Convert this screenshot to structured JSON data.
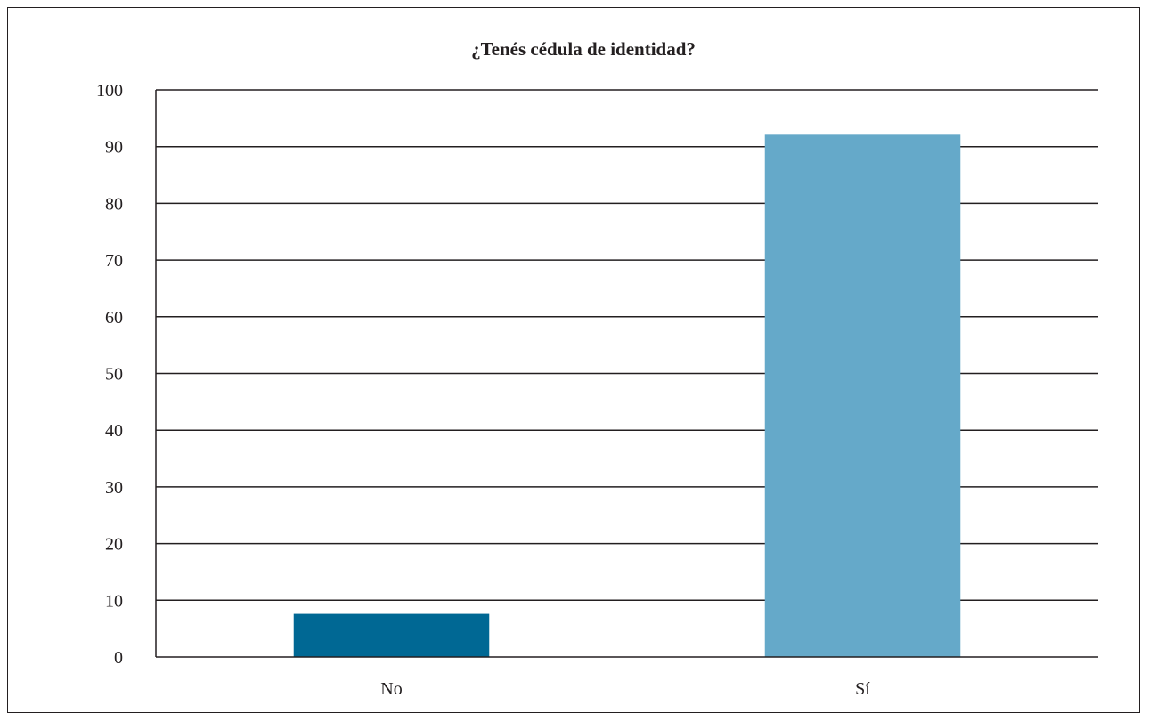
{
  "chart_data": {
    "type": "bar",
    "title": "¿Tenés cédula de identidad?",
    "xlabel": "",
    "ylabel": "",
    "categories": [
      "No",
      "Sí"
    ],
    "values": [
      7.6,
      92.1
    ],
    "bar_colors": [
      "#006894",
      "#65a9c9"
    ],
    "ylim": [
      0,
      100
    ],
    "yticks": [
      0,
      10,
      20,
      30,
      40,
      50,
      60,
      70,
      80,
      90,
      100
    ],
    "grid": true,
    "legend": "none"
  }
}
